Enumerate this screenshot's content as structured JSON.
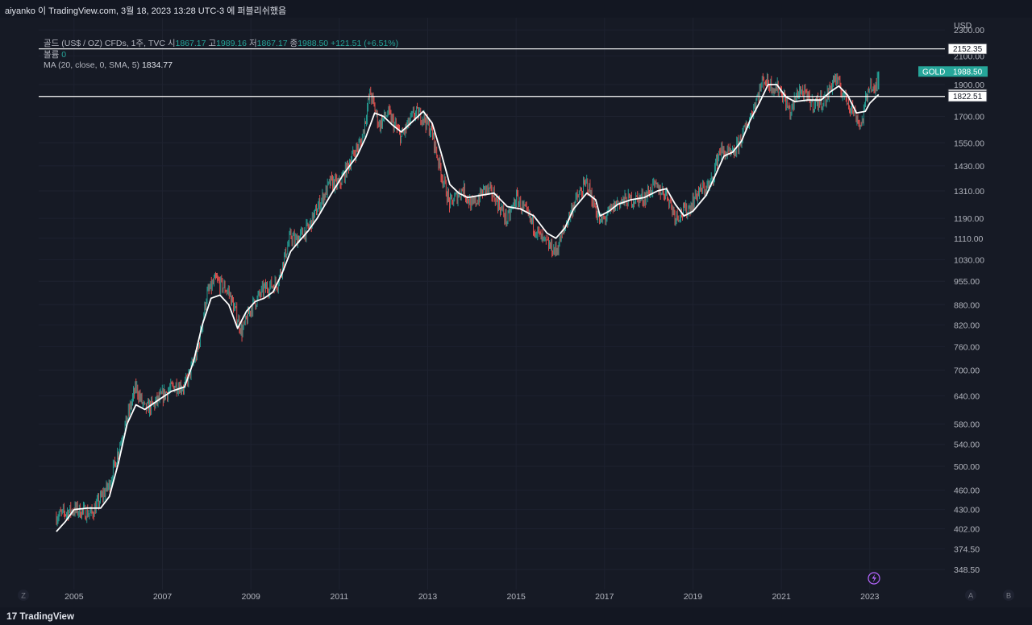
{
  "header": {
    "caption": "aiyanko 이 TradingView.com, 3월 18, 2023 13:28 UTC-3 에 퍼블리쉬했음"
  },
  "legend": {
    "symbol": "골드 (US$ / OZ) CFDs, 1주, TVC",
    "open_label": "시",
    "open": "1867.17",
    "high_label": "고",
    "high": "1989.16",
    "low_label": "저",
    "low": "1867.17",
    "close_label": "종",
    "close": "1988.50",
    "change": "+121.51 (+6.51%)",
    "volume_label": "볼륨",
    "volume": "0",
    "ma_label": "MA (20, close, 0, SMA, 5)",
    "ma_value": "1834.77"
  },
  "colors": {
    "up": "#26a69a",
    "down": "#ef5350",
    "ma": "#ffffff",
    "bg": "#161a25",
    "text": "#b2b5be"
  },
  "buttons": {
    "z": "Z",
    "a": "A",
    "b": "B"
  },
  "footer": {
    "brand": "TradingView",
    "logo": "17"
  },
  "chart_data": {
    "type": "line",
    "title": "골드 (US$ / OZ) CFDs, 1주, TVC",
    "ylabel": "USD",
    "y_scale": "log",
    "ylim": [
      325,
      2400
    ],
    "xlim": [
      2004.2,
      2024.7
    ],
    "x_ticks": [
      "2005",
      "2007",
      "2009",
      "2011",
      "2013",
      "2015",
      "2017",
      "2019",
      "2021",
      "2023"
    ],
    "y_ticks": [
      "2300.00",
      "2100.00",
      "1900.00",
      "1700.00",
      "1550.00",
      "1430.00",
      "1310.00",
      "1190.00",
      "1110.00",
      "1030.00",
      "955.00",
      "880.00",
      "820.00",
      "760.00",
      "700.00",
      "640.00",
      "580.00",
      "540.00",
      "500.00",
      "460.00",
      "430.00",
      "402.00",
      "374.50",
      "348.50"
    ],
    "horizontal_lines": [
      2152.35,
      1822.51
    ],
    "price_labels": [
      {
        "value": 2152.35,
        "text": "2152.35",
        "style": "white"
      },
      {
        "value": 1988.5,
        "text": "1988.50",
        "tag": "GOLD",
        "style": "green"
      },
      {
        "value": 1834.77,
        "text": "1834.77",
        "style": "white"
      },
      {
        "value": 1822.51,
        "text": "1822.51",
        "style": "white"
      }
    ],
    "series": [
      {
        "name": "골드",
        "style": "candles",
        "points": [
          [
            2004.6,
            420
          ],
          [
            2005.0,
            430
          ],
          [
            2005.4,
            424
          ],
          [
            2005.8,
            470
          ],
          [
            2006.1,
            560
          ],
          [
            2006.4,
            660
          ],
          [
            2006.6,
            610
          ],
          [
            2006.8,
            620
          ],
          [
            2007.0,
            640
          ],
          [
            2007.3,
            665
          ],
          [
            2007.5,
            660
          ],
          [
            2007.8,
            750
          ],
          [
            2008.0,
            910
          ],
          [
            2008.2,
            960
          ],
          [
            2008.5,
            920
          ],
          [
            2008.8,
            800
          ],
          [
            2009.0,
            870
          ],
          [
            2009.3,
            930
          ],
          [
            2009.6,
            950
          ],
          [
            2009.9,
            1120
          ],
          [
            2010.0,
            1100
          ],
          [
            2010.3,
            1150
          ],
          [
            2010.5,
            1230
          ],
          [
            2010.8,
            1350
          ],
          [
            2011.0,
            1340
          ],
          [
            2011.3,
            1480
          ],
          [
            2011.5,
            1560
          ],
          [
            2011.7,
            1850
          ],
          [
            2011.9,
            1650
          ],
          [
            2012.1,
            1720
          ],
          [
            2012.4,
            1580
          ],
          [
            2012.7,
            1720
          ],
          [
            2012.9,
            1700
          ],
          [
            2013.1,
            1600
          ],
          [
            2013.3,
            1400
          ],
          [
            2013.5,
            1250
          ],
          [
            2013.8,
            1320
          ],
          [
            2014.0,
            1240
          ],
          [
            2014.3,
            1320
          ],
          [
            2014.5,
            1290
          ],
          [
            2014.8,
            1180
          ],
          [
            2015.0,
            1280
          ],
          [
            2015.3,
            1190
          ],
          [
            2015.6,
            1100
          ],
          [
            2015.9,
            1060
          ],
          [
            2016.1,
            1150
          ],
          [
            2016.3,
            1250
          ],
          [
            2016.6,
            1350
          ],
          [
            2016.9,
            1170
          ],
          [
            2017.0,
            1190
          ],
          [
            2017.3,
            1260
          ],
          [
            2017.6,
            1270
          ],
          [
            2017.9,
            1280
          ],
          [
            2018.1,
            1330
          ],
          [
            2018.4,
            1300
          ],
          [
            2018.6,
            1200
          ],
          [
            2018.9,
            1230
          ],
          [
            2019.1,
            1300
          ],
          [
            2019.4,
            1340
          ],
          [
            2019.6,
            1510
          ],
          [
            2019.9,
            1480
          ],
          [
            2020.1,
            1580
          ],
          [
            2020.3,
            1700
          ],
          [
            2020.6,
            1940
          ],
          [
            2020.8,
            1890
          ],
          [
            2021.0,
            1860
          ],
          [
            2021.2,
            1720
          ],
          [
            2021.4,
            1870
          ],
          [
            2021.7,
            1780
          ],
          [
            2022.0,
            1800
          ],
          [
            2022.2,
            1950
          ],
          [
            2022.4,
            1840
          ],
          [
            2022.7,
            1700
          ],
          [
            2022.8,
            1640
          ],
          [
            2022.9,
            1780
          ],
          [
            2023.0,
            1920
          ],
          [
            2023.1,
            1830
          ],
          [
            2023.2,
            1988.5
          ]
        ]
      },
      {
        "name": "MA (20, close, 0, SMA, 5)",
        "style": "line",
        "points": [
          [
            2004.6,
            398
          ],
          [
            2004.8,
            412
          ],
          [
            2005.0,
            430
          ],
          [
            2005.3,
            432
          ],
          [
            2005.6,
            432
          ],
          [
            2005.8,
            450
          ],
          [
            2006.0,
            505
          ],
          [
            2006.2,
            580
          ],
          [
            2006.4,
            620
          ],
          [
            2006.6,
            610
          ],
          [
            2006.9,
            630
          ],
          [
            2007.2,
            650
          ],
          [
            2007.5,
            660
          ],
          [
            2007.7,
            720
          ],
          [
            2007.9,
            820
          ],
          [
            2008.1,
            900
          ],
          [
            2008.3,
            910
          ],
          [
            2008.5,
            880
          ],
          [
            2008.7,
            810
          ],
          [
            2008.9,
            860
          ],
          [
            2009.1,
            890
          ],
          [
            2009.3,
            900
          ],
          [
            2009.5,
            920
          ],
          [
            2009.7,
            980
          ],
          [
            2009.9,
            1060
          ],
          [
            2010.1,
            1100
          ],
          [
            2010.3,
            1140
          ],
          [
            2010.5,
            1190
          ],
          [
            2010.8,
            1290
          ],
          [
            2011.1,
            1390
          ],
          [
            2011.4,
            1480
          ],
          [
            2011.6,
            1580
          ],
          [
            2011.8,
            1720
          ],
          [
            2012.0,
            1700
          ],
          [
            2012.2,
            1650
          ],
          [
            2012.4,
            1610
          ],
          [
            2012.7,
            1680
          ],
          [
            2012.9,
            1730
          ],
          [
            2013.1,
            1660
          ],
          [
            2013.3,
            1500
          ],
          [
            2013.5,
            1340
          ],
          [
            2013.7,
            1300
          ],
          [
            2013.9,
            1280
          ],
          [
            2014.2,
            1290
          ],
          [
            2014.5,
            1300
          ],
          [
            2014.8,
            1240
          ],
          [
            2015.1,
            1230
          ],
          [
            2015.4,
            1200
          ],
          [
            2015.7,
            1130
          ],
          [
            2015.9,
            1110
          ],
          [
            2016.1,
            1150
          ],
          [
            2016.3,
            1230
          ],
          [
            2016.6,
            1300
          ],
          [
            2016.8,
            1270
          ],
          [
            2016.9,
            1200
          ],
          [
            2017.1,
            1220
          ],
          [
            2017.3,
            1250
          ],
          [
            2017.6,
            1270
          ],
          [
            2017.9,
            1280
          ],
          [
            2018.2,
            1310
          ],
          [
            2018.4,
            1320
          ],
          [
            2018.6,
            1250
          ],
          [
            2018.8,
            1200
          ],
          [
            2019.0,
            1220
          ],
          [
            2019.3,
            1290
          ],
          [
            2019.5,
            1380
          ],
          [
            2019.7,
            1480
          ],
          [
            2019.9,
            1500
          ],
          [
            2020.1,
            1560
          ],
          [
            2020.3,
            1680
          ],
          [
            2020.5,
            1780
          ],
          [
            2020.7,
            1900
          ],
          [
            2020.9,
            1900
          ],
          [
            2021.1,
            1820
          ],
          [
            2021.3,
            1790
          ],
          [
            2021.6,
            1800
          ],
          [
            2021.9,
            1800
          ],
          [
            2022.1,
            1850
          ],
          [
            2022.3,
            1890
          ],
          [
            2022.5,
            1830
          ],
          [
            2022.7,
            1720
          ],
          [
            2022.9,
            1730
          ],
          [
            2023.0,
            1780
          ],
          [
            2023.2,
            1834.77
          ]
        ]
      }
    ],
    "grid": true,
    "legend_position": "top-left"
  }
}
